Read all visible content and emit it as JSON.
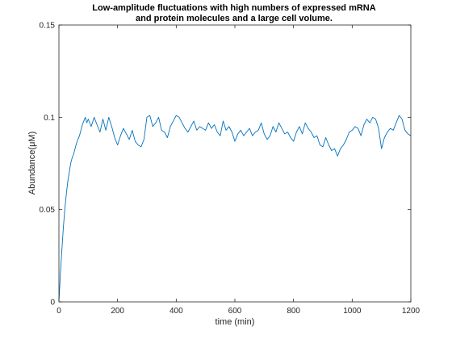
{
  "chart_data": {
    "type": "line",
    "title_lines": [
      "Low-amplitude fluctuations with high numbers of expressed mRNA",
      "and protein molecules and a large cell volume."
    ],
    "xlabel": "time (min)",
    "ylabel": "Abundance(μM)",
    "xlim": [
      0,
      1200
    ],
    "ylim": [
      0,
      0.15
    ],
    "xticks": [
      0,
      200,
      400,
      600,
      800,
      1000,
      1200
    ],
    "xtick_labels": [
      "0",
      "200",
      "400",
      "600",
      "800",
      "1000",
      "1200"
    ],
    "yticks": [
      0,
      0.05,
      0.1,
      0.15
    ],
    "ytick_labels": [
      "0",
      "0.05",
      "0.1",
      "0.15"
    ],
    "grid": false,
    "series": [
      {
        "color": "#0072BD",
        "x": [
          0,
          5,
          10,
          15,
          20,
          25,
          30,
          35,
          40,
          45,
          50,
          55,
          60,
          65,
          70,
          75,
          80,
          85,
          90,
          95,
          100,
          110,
          120,
          130,
          140,
          150,
          160,
          170,
          180,
          190,
          200,
          210,
          220,
          230,
          240,
          250,
          260,
          270,
          280,
          290,
          300,
          310,
          320,
          330,
          340,
          350,
          360,
          370,
          380,
          390,
          400,
          410,
          420,
          430,
          440,
          450,
          460,
          470,
          480,
          490,
          500,
          510,
          520,
          530,
          540,
          550,
          560,
          570,
          580,
          590,
          600,
          610,
          620,
          630,
          640,
          650,
          660,
          670,
          680,
          690,
          700,
          710,
          720,
          730,
          740,
          750,
          760,
          770,
          780,
          790,
          800,
          810,
          820,
          830,
          840,
          850,
          860,
          870,
          880,
          890,
          900,
          910,
          920,
          930,
          940,
          950,
          960,
          970,
          980,
          990,
          1000,
          1010,
          1020,
          1030,
          1040,
          1050,
          1060,
          1070,
          1080,
          1090,
          1100,
          1110,
          1120,
          1130,
          1140,
          1150,
          1160,
          1170,
          1180,
          1190,
          1200
        ],
        "y": [
          0,
          0.015,
          0.028,
          0.04,
          0.05,
          0.058,
          0.065,
          0.07,
          0.075,
          0.078,
          0.08,
          0.083,
          0.086,
          0.088,
          0.09,
          0.093,
          0.096,
          0.098,
          0.1,
          0.097,
          0.099,
          0.095,
          0.1,
          0.096,
          0.092,
          0.099,
          0.093,
          0.1,
          0.095,
          0.089,
          0.085,
          0.09,
          0.094,
          0.091,
          0.088,
          0.093,
          0.087,
          0.085,
          0.084,
          0.088,
          0.1,
          0.101,
          0.095,
          0.097,
          0.1,
          0.093,
          0.092,
          0.089,
          0.095,
          0.098,
          0.101,
          0.1,
          0.097,
          0.094,
          0.092,
          0.095,
          0.098,
          0.093,
          0.095,
          0.094,
          0.093,
          0.097,
          0.094,
          0.096,
          0.092,
          0.09,
          0.098,
          0.093,
          0.095,
          0.092,
          0.087,
          0.091,
          0.093,
          0.09,
          0.092,
          0.094,
          0.09,
          0.092,
          0.093,
          0.097,
          0.091,
          0.088,
          0.09,
          0.095,
          0.092,
          0.097,
          0.094,
          0.091,
          0.092,
          0.089,
          0.087,
          0.092,
          0.095,
          0.091,
          0.097,
          0.094,
          0.092,
          0.089,
          0.09,
          0.085,
          0.084,
          0.089,
          0.085,
          0.082,
          0.083,
          0.079,
          0.083,
          0.085,
          0.088,
          0.092,
          0.093,
          0.095,
          0.094,
          0.09,
          0.096,
          0.099,
          0.097,
          0.1,
          0.099,
          0.094,
          0.083,
          0.089,
          0.092,
          0.094,
          0.093,
          0.097,
          0.101,
          0.099,
          0.093,
          0.091,
          0.09
        ]
      }
    ]
  }
}
